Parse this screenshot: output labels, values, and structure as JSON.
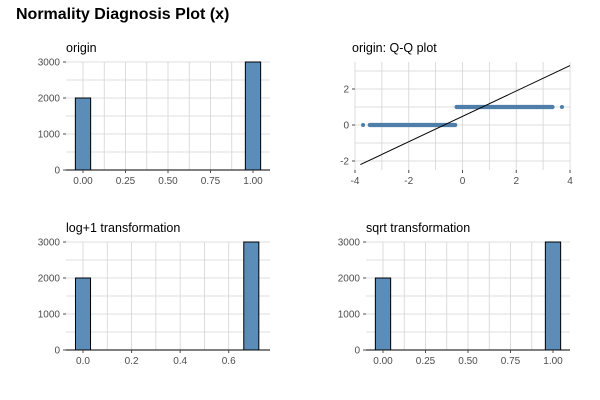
{
  "title": "Normality Diagnosis Plot (x)",
  "colors": {
    "bar_fill": "#5b8db8",
    "bar_stroke": "#000000",
    "point": "#4f7ea8",
    "line": "#000000",
    "grid": "#d4d4d4",
    "axis": "#4d4d4d"
  },
  "chart_data": [
    {
      "type": "bar",
      "title": "origin",
      "xlabel": "",
      "ylabel": "",
      "xlim": [
        -0.1,
        1.1
      ],
      "ylim": [
        0,
        3000
      ],
      "x_ticks": [
        0,
        0.25,
        0.5,
        0.75,
        1
      ],
      "x_tick_labels": [
        "0.00",
        "0.25",
        "0.50",
        "0.75",
        "1.00"
      ],
      "y_ticks": [
        0,
        1000,
        2000,
        3000
      ],
      "y_tick_labels": [
        "0",
        "1000",
        "2000",
        "3000"
      ],
      "grid": true,
      "bars": [
        {
          "x": 0,
          "width": 0.09,
          "value": 2000
        },
        {
          "x": 1,
          "width": 0.09,
          "value": 3000
        }
      ]
    },
    {
      "type": "scatter",
      "title": "origin: Q-Q plot",
      "xlabel": "",
      "ylabel": "",
      "xlim": [
        -4,
        4
      ],
      "ylim": [
        -2.5,
        3.5
      ],
      "x_ticks": [
        -4,
        -2,
        0,
        2,
        4
      ],
      "x_tick_labels": [
        "-4",
        "-2",
        "0",
        "2",
        "4"
      ],
      "y_ticks": [
        -2,
        0,
        2
      ],
      "y_tick_labels": [
        "-2",
        "0",
        "2"
      ],
      "grid": true,
      "point_segments": [
        {
          "y": 0,
          "x_from": -3.45,
          "x_to": -0.27
        },
        {
          "y": 1,
          "x_from": -0.22,
          "x_to": 3.35
        }
      ],
      "outliers": [
        {
          "x": -3.7,
          "y": 0
        },
        {
          "x": 3.7,
          "y": 1
        }
      ],
      "reference_line": {
        "x1": -3.8,
        "y1": -2.2,
        "x2": 4,
        "y2": 3.3
      }
    },
    {
      "type": "bar",
      "title": "log+1 transformation",
      "xlabel": "",
      "ylabel": "",
      "xlim": [
        -0.07,
        0.77
      ],
      "ylim": [
        0,
        3000
      ],
      "x_ticks": [
        0,
        0.2,
        0.4,
        0.6
      ],
      "x_tick_labels": [
        "0.0",
        "0.2",
        "0.4",
        "0.6"
      ],
      "y_ticks": [
        0,
        1000,
        2000,
        3000
      ],
      "y_tick_labels": [
        "0",
        "1000",
        "2000",
        "3000"
      ],
      "grid": true,
      "bars": [
        {
          "x": 0,
          "width": 0.062,
          "value": 2000
        },
        {
          "x": 0.693,
          "width": 0.062,
          "value": 3000
        }
      ]
    },
    {
      "type": "bar",
      "title": "sqrt transformation",
      "xlabel": "",
      "ylabel": "",
      "xlim": [
        -0.1,
        1.1
      ],
      "ylim": [
        0,
        3000
      ],
      "x_ticks": [
        0,
        0.25,
        0.5,
        0.75,
        1
      ],
      "x_tick_labels": [
        "0.00",
        "0.25",
        "0.50",
        "0.75",
        "1.00"
      ],
      "y_ticks": [
        0,
        1000,
        2000,
        3000
      ],
      "y_tick_labels": [
        "0",
        "1000",
        "2000",
        "3000"
      ],
      "grid": true,
      "bars": [
        {
          "x": 0,
          "width": 0.09,
          "value": 2000
        },
        {
          "x": 1,
          "width": 0.09,
          "value": 3000
        }
      ]
    }
  ]
}
